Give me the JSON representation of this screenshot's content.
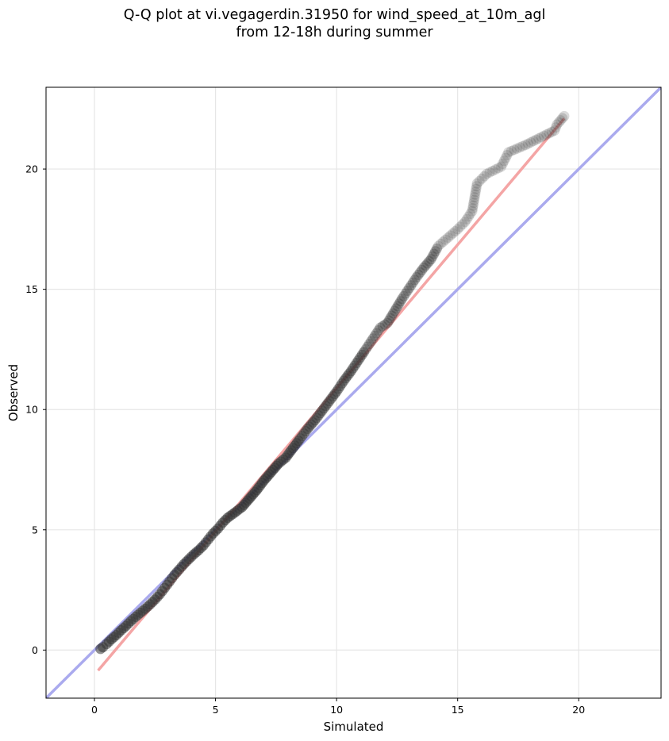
{
  "title": {
    "line1": "Q-Q plot at vi.vegagerdin.31950 for wind_speed_at_10m_agl",
    "line2": "from 12-18h during summer"
  },
  "chart_data": {
    "type": "scatter",
    "xlabel": "Simulated",
    "ylabel": "Observed",
    "xlim": [
      -2.0,
      23.4
    ],
    "ylim": [
      -2.0,
      23.4
    ],
    "xticks": [
      0,
      5,
      10,
      15,
      20
    ],
    "yticks": [
      0,
      5,
      10,
      15,
      20
    ],
    "grid": true,
    "point_color": "#333333",
    "identity_line": {
      "color": "#aaaaee",
      "from": [
        -2.0,
        -2.0
      ],
      "to": [
        23.4,
        23.4
      ]
    },
    "fit_line": {
      "color": "#f4a5a5",
      "from": [
        0.15,
        -0.85
      ],
      "to": [
        19.4,
        22.1
      ]
    },
    "points": [
      [
        0.25,
        0.05
      ],
      [
        0.35,
        0.12
      ],
      [
        0.5,
        0.25
      ],
      [
        0.7,
        0.45
      ],
      [
        0.9,
        0.62
      ],
      [
        1.1,
        0.82
      ],
      [
        1.3,
        1.0
      ],
      [
        1.5,
        1.2
      ],
      [
        1.7,
        1.38
      ],
      [
        1.9,
        1.55
      ],
      [
        2.1,
        1.72
      ],
      [
        2.3,
        1.9
      ],
      [
        2.5,
        2.1
      ],
      [
        2.7,
        2.32
      ],
      [
        2.9,
        2.58
      ],
      [
        3.1,
        2.85
      ],
      [
        3.3,
        3.12
      ],
      [
        3.5,
        3.35
      ],
      [
        3.7,
        3.58
      ],
      [
        3.9,
        3.78
      ],
      [
        4.1,
        3.98
      ],
      [
        4.3,
        4.15
      ],
      [
        4.5,
        4.35
      ],
      [
        4.7,
        4.6
      ],
      [
        4.9,
        4.85
      ],
      [
        5.1,
        5.05
      ],
      [
        5.3,
        5.3
      ],
      [
        5.5,
        5.5
      ],
      [
        5.8,
        5.72
      ],
      [
        6.1,
        5.95
      ],
      [
        6.4,
        6.3
      ],
      [
        6.7,
        6.65
      ],
      [
        7.0,
        7.05
      ],
      [
        7.3,
        7.4
      ],
      [
        7.6,
        7.75
      ],
      [
        7.9,
        8.0
      ],
      [
        8.2,
        8.4
      ],
      [
        8.5,
        8.8
      ],
      [
        8.8,
        9.2
      ],
      [
        9.1,
        9.55
      ],
      [
        9.4,
        9.95
      ],
      [
        9.7,
        10.35
      ],
      [
        10.0,
        10.75
      ],
      [
        10.3,
        11.2
      ],
      [
        10.6,
        11.6
      ],
      [
        10.9,
        12.05
      ],
      [
        11.2,
        12.5
      ],
      [
        11.5,
        12.95
      ],
      [
        11.8,
        13.4
      ],
      [
        12.1,
        13.6
      ],
      [
        12.4,
        14.1
      ],
      [
        12.7,
        14.6
      ],
      [
        13.0,
        15.05
      ],
      [
        13.3,
        15.5
      ],
      [
        13.6,
        15.9
      ],
      [
        13.9,
        16.25
      ],
      [
        14.2,
        16.8
      ],
      [
        14.6,
        17.15
      ],
      [
        15.0,
        17.5
      ],
      [
        15.3,
        17.8
      ],
      [
        15.6,
        18.25
      ],
      [
        15.8,
        19.4
      ],
      [
        16.2,
        19.8
      ],
      [
        16.8,
        20.1
      ],
      [
        17.1,
        20.7
      ],
      [
        17.8,
        21.0
      ],
      [
        19.0,
        21.6
      ],
      [
        19.1,
        21.85
      ],
      [
        19.4,
        22.2
      ]
    ]
  }
}
